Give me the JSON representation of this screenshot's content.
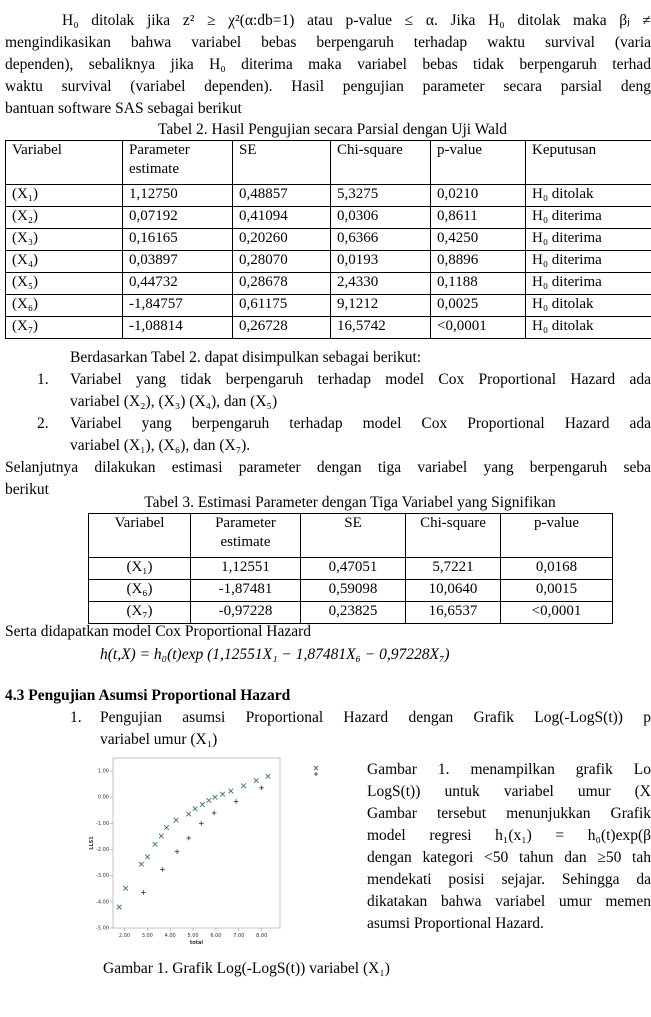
{
  "paragraph_1": {
    "lines": [
      "H₀ ditolak jika z² ≥ χ²(α:db=1) atau p-value ≤ α. Jika H₀ ditolak maka βⱼ ≠",
      "mengindikasikan bahwa variabel bebas berpengaruh terhadap waktu survival (varia",
      "dependen), sebaliknya jika H₀ diterima maka variabel bebas tidak berpengaruh terhad",
      "waktu survival (variabel dependen). Hasil pengujian parameter secara parsial deng",
      "bantuan software SAS sebagai berikut"
    ]
  },
  "table_2": {
    "title": "Tabel 2. Hasil Pengujian secara Parsial dengan Uji Wald",
    "header": [
      "Variabel",
      "Parameter estimate",
      "SE",
      "Chi-square",
      "p-value",
      "Keputusan"
    ],
    "rows": [
      [
        "(X₁)",
        "1,12750",
        "0,48857",
        "5,3275",
        "0,0210",
        "H₀ ditolak"
      ],
      [
        "(X₂)",
        "0,07192",
        "0,41094",
        "0,0306",
        "0,8611",
        "H₀ diterima"
      ],
      [
        "(X₃)",
        "0,16165",
        "0,20260",
        "0,6366",
        "0,4250",
        "H₀ diterima"
      ],
      [
        "(X₄)",
        "0,03897",
        "0,28070",
        "0,0193",
        "0,8896",
        "H₀ diterima"
      ],
      [
        "(X₅)",
        "0,44732",
        "0,28678",
        "2,4330",
        "0,1188",
        "H₀ diterima"
      ],
      [
        "(X₆)",
        "-1,84757",
        "0,61175",
        "9,1212",
        "0,0025",
        "H₀ ditolak"
      ],
      [
        "(X₇)",
        "-1,08814",
        "0,26728",
        "16,5742",
        "<0,0001",
        "H₀ ditolak"
      ]
    ]
  },
  "paragraph_2": {
    "lines": [
      "Berdasarkan Tabel 2. dapat disimpulkan sebagai berikut:"
    ]
  },
  "list_1": {
    "items": [
      {
        "number": "1.",
        "lines": [
          "Variabel yang tidak berpengaruh terhadap model Cox Proportional Hazard ada",
          "variabel (X₂), (X₃) (X₄), dan (X₅)"
        ]
      },
      {
        "number": "2.",
        "lines": [
          "Variabel yang berpengaruh terhadap model Cox Proportional Hazard ada",
          "variabel (X₁), (X₆), dan (X₇)."
        ]
      }
    ]
  },
  "paragraph_3": {
    "lines": [
      "Selanjutnya dilakukan estimasi parameter dengan tiga variabel yang berpengaruh seba",
      "berikut"
    ]
  },
  "table_3": {
    "title": "Tabel 3. Estimasi Parameter dengan Tiga Variabel yang Signifikan",
    "header": [
      "Variabel",
      "Parameter estimate",
      "SE",
      "Chi-square",
      "p-value"
    ],
    "rows": [
      [
        "(X₁)",
        "1,12551",
        "0,47051",
        "5,7221",
        "0,0168"
      ],
      [
        "(X₆)",
        "-1,87481",
        "0,59098",
        "10,0640",
        "0,0015"
      ],
      [
        "(X₇)",
        "-0,97228",
        "0,23825",
        "16,6537",
        "<0,0001"
      ]
    ]
  },
  "paragraph_4": {
    "lines": [
      "Serta didapatkan model Cox Proportional Hazard"
    ]
  },
  "equation": "h(t,X) = h₀(t)exp (1,12551X₁ − 1,87481X₆ − 0,97228X₇)",
  "section": {
    "heading": "4.3 Pengujian Asumsi Proportional Hazard",
    "items": [
      {
        "number": "1.",
        "lines": [
          "Pengujian asumsi Proportional Hazard dengan Grafik Log(-LogS(t)) p",
          "variabel umur (X₁)"
        ]
      }
    ]
  },
  "figure_text": {
    "lines": [
      "Gambar 1. menampilkan grafik Lo",
      "LogS(t)) untuk variabel umur (X",
      "Gambar tersebut menunjukkan Grafik",
      "model regresi h₁(x₁) = h₀(t)exp(β",
      "dengan kategori <50 tahun dan ≥50 tah",
      "mendekati posisi sejajar. Sehingga da",
      "dikatakan bahwa variabel umur memen",
      "asumsi Proportional Hazard."
    ]
  },
  "figure": {
    "caption": "Gambar 1. Grafik Log(-LogS(t)) variabel (X₁)",
    "chart": {
      "type": "scatter",
      "x_label": "total",
      "y_label": "LLS1",
      "xlim": [
        1.5,
        8.8
      ],
      "ylim": [
        -5,
        1.5
      ],
      "xticks": [
        {
          "value": 2,
          "label": "2.00"
        },
        {
          "value": 3,
          "label": "3.00"
        },
        {
          "value": 4,
          "label": "4.00"
        },
        {
          "value": 5,
          "label": "5.00"
        },
        {
          "value": 6,
          "label": "6.00"
        },
        {
          "value": 7,
          "label": "7.00"
        },
        {
          "value": 8,
          "label": "8.00"
        }
      ],
      "yticks": [
        {
          "value": -5,
          "label": "-5.00"
        },
        {
          "value": -4,
          "label": "-4.00"
        },
        {
          "value": -3,
          "label": "-3.00"
        },
        {
          "value": -2,
          "label": "-2.00"
        },
        {
          "value": -1,
          "label": "-1.00"
        },
        {
          "value": 0,
          "label": "0.00"
        },
        {
          "value": 1,
          "label": "1.00"
        }
      ],
      "series": [
        {
          "marker": "x",
          "color": "#3a7078",
          "x": [
            1.77,
            2.05,
            2.74,
            3.01,
            3.34,
            3.61,
            3.84,
            4.26,
            4.81,
            5.09,
            5.41,
            5.69,
            5.96,
            6.29,
            6.65,
            7.21,
            7.76,
            8.27
          ],
          "values": [
            -4.2,
            -3.48,
            -2.56,
            -2.28,
            -1.8,
            -1.48,
            -1.16,
            -0.88,
            -0.64,
            -0.44,
            -0.28,
            -0.12,
            0.0,
            0.12,
            0.24,
            0.44,
            0.64,
            0.8
          ]
        },
        {
          "marker": "+",
          "color": "#2e4a58",
          "x": [
            2.83,
            3.66,
            4.3,
            4.81,
            5.36,
            5.92,
            6.88,
            7.99
          ],
          "values": [
            -3.64,
            -2.76,
            -2.08,
            -1.56,
            -1.0,
            -0.6,
            -0.16,
            0.36
          ]
        }
      ]
    }
  }
}
